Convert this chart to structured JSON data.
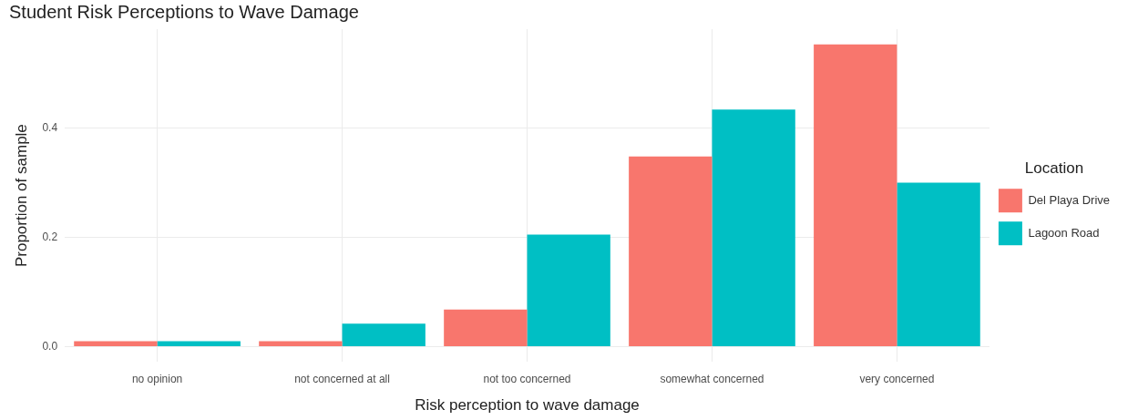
{
  "chart_data": {
    "type": "bar",
    "title": "Student Risk Perceptions to Wave Damage",
    "xlabel": "Risk perception to wave damage",
    "ylabel": "Proportion of sample",
    "legend_title": "Location",
    "categories": [
      "no opinion",
      "not concerned at all",
      "not too concerned",
      "somewhat concerned",
      "very concerned"
    ],
    "series": [
      {
        "name": "Del Playa Drive",
        "color": "#f8766d",
        "values": [
          0.01,
          0.01,
          0.068,
          0.348,
          0.553
        ]
      },
      {
        "name": "Lagoon Road",
        "color": "#00bfc4",
        "values": [
          0.01,
          0.042,
          0.205,
          0.434,
          0.3
        ]
      }
    ],
    "ylim": [
      -0.028,
      0.581
    ],
    "yticks": [
      {
        "value": 0,
        "label": "0.0"
      },
      {
        "value": 0.2,
        "label": "0.2"
      },
      {
        "value": 0.4,
        "label": "0.4"
      }
    ],
    "grid": true,
    "legend": "right"
  }
}
